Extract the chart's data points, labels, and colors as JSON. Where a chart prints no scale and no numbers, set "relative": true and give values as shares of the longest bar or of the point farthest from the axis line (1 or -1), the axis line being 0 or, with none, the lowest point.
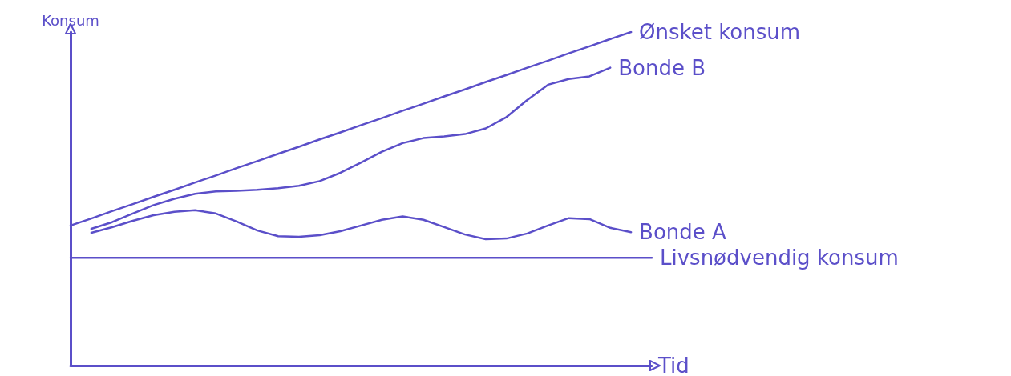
{
  "chart_data": {
    "type": "line",
    "relative": true,
    "xlabel": "Tid",
    "ylabel": "Konsum",
    "legend": false,
    "grid": false,
    "marker": "none",
    "line_style": "solid",
    "categories": [
      null,
      null,
      null,
      null,
      null,
      null,
      null,
      null,
      null,
      null,
      null,
      null,
      null,
      null,
      null,
      null,
      null,
      null,
      null,
      null,
      null,
      null,
      null,
      null,
      null,
      null,
      null,
      null,
      null
    ],
    "series": [
      {
        "name": "Ønsket konsum",
        "color": "#5b4fc9",
        "values": [
          0.42,
          0.441,
          0.463,
          0.484,
          0.506,
          0.527,
          0.549,
          0.57,
          0.592,
          0.613,
          0.635,
          0.656,
          0.678,
          0.699,
          0.721,
          0.742,
          0.764,
          0.785,
          0.807,
          0.828,
          0.85,
          0.871,
          0.893,
          0.914,
          0.936,
          0.957,
          0.979,
          1.0,
          null
        ]
      },
      {
        "name": "Bonde B",
        "color": "#5b4fc9",
        "values": [
          null,
          0.41,
          0.43,
          0.456,
          0.481,
          0.5,
          0.515,
          0.522,
          0.524,
          0.527,
          0.532,
          0.539,
          0.553,
          0.578,
          0.609,
          0.641,
          0.667,
          0.682,
          0.687,
          0.694,
          0.711,
          0.745,
          0.796,
          0.842,
          0.859,
          0.867,
          0.893,
          null,
          null
        ]
      },
      {
        "name": "Bonde A",
        "color": "#5b4fc9",
        "values": [
          null,
          0.398,
          0.415,
          0.434,
          0.451,
          0.461,
          0.466,
          0.456,
          0.432,
          0.405,
          0.388,
          0.386,
          0.391,
          0.403,
          0.42,
          0.437,
          0.447,
          0.437,
          0.415,
          0.393,
          0.379,
          0.381,
          0.396,
          0.42,
          0.442,
          0.439,
          0.413,
          0.4,
          null
        ]
      },
      {
        "name": "Livsnødvendig konsum",
        "color": "#5b4fc9",
        "values": [
          0.323,
          0.323,
          0.323,
          0.323,
          0.323,
          0.323,
          0.323,
          0.323,
          0.323,
          0.323,
          0.323,
          0.323,
          0.323,
          0.323,
          0.323,
          0.323,
          0.323,
          0.323,
          0.323,
          0.323,
          0.323,
          0.323,
          0.323,
          0.323,
          0.323,
          0.323,
          0.323,
          0.323,
          0.323
        ]
      }
    ]
  }
}
